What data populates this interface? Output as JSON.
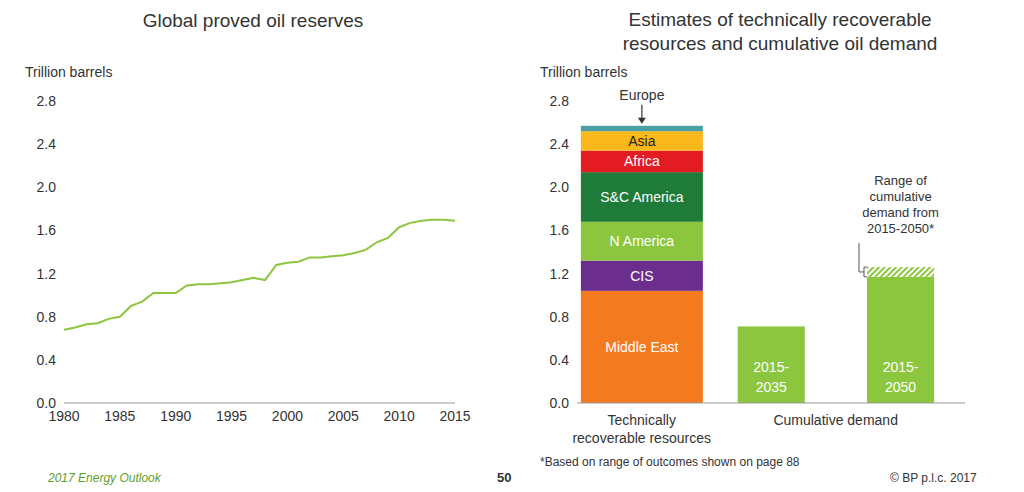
{
  "chart_data": [
    {
      "type": "line",
      "title": "Global proved oil reserves",
      "y_label": "Trillion barrels",
      "x": [
        1980,
        1981,
        1982,
        1983,
        1984,
        1985,
        1986,
        1987,
        1988,
        1989,
        1990,
        1991,
        1992,
        1993,
        1994,
        1995,
        1996,
        1997,
        1998,
        1999,
        2000,
        2001,
        2002,
        2003,
        2004,
        2005,
        2006,
        2007,
        2008,
        2009,
        2010,
        2011,
        2012,
        2013,
        2014,
        2015
      ],
      "values": [
        0.68,
        0.7,
        0.73,
        0.74,
        0.78,
        0.8,
        0.9,
        0.94,
        1.02,
        1.02,
        1.02,
        1.09,
        1.1,
        1.1,
        1.11,
        1.12,
        1.14,
        1.16,
        1.14,
        1.28,
        1.3,
        1.31,
        1.35,
        1.35,
        1.36,
        1.37,
        1.39,
        1.42,
        1.49,
        1.53,
        1.63,
        1.67,
        1.69,
        1.7,
        1.7,
        1.69
      ],
      "color": "#8cc63f",
      "xlim": [
        1980,
        2015
      ],
      "xticks": [
        1980,
        1985,
        1990,
        1995,
        2000,
        2005,
        2010,
        2015
      ],
      "ylim": [
        0,
        2.8
      ],
      "yticks": [
        {
          "value": 0,
          "label": "0.0"
        },
        0.4,
        0.8,
        1.2,
        1.6,
        {
          "value": 2,
          "label": "2.0"
        },
        2.4,
        2.8
      ],
      "grid": false
    },
    {
      "type": "bar",
      "stacked": true,
      "title": "Estimates of technically recoverable resources and cumulative oil demand",
      "y_label": "Trillion barrels",
      "categories": [
        "Technically recoverable resources",
        "2015-2035",
        "2015-2050"
      ],
      "series": [
        {
          "name": "Middle East",
          "color": "#f47a20",
          "values": [
            1.04,
            null,
            null
          ]
        },
        {
          "name": "CIS",
          "color": "#6b2d8e",
          "values": [
            0.28,
            null,
            null
          ]
        },
        {
          "name": "N America",
          "color": "#8cc63f",
          "values": [
            0.36,
            null,
            null
          ]
        },
        {
          "name": "S&C America",
          "color": "#1e7b38",
          "values": [
            0.46,
            null,
            null
          ]
        },
        {
          "name": "Africa",
          "color": "#e31b23",
          "values": [
            0.2,
            null,
            null
          ]
        },
        {
          "name": "Asia",
          "color": "#fbb81b",
          "values": [
            0.18,
            null,
            null
          ]
        },
        {
          "name": "Europe",
          "color": "#4a9fa5",
          "values": [
            0.05,
            null,
            null
          ]
        },
        {
          "name": "Cumulative demand",
          "color": "#8cc63f",
          "values": [
            null,
            0.71,
            1.17
          ]
        },
        {
          "name": "Range of cumulative demand from 2015-2050*",
          "color": "#8cc63f",
          "line_style": "hatched",
          "values": [
            null,
            null,
            0.09
          ]
        }
      ],
      "ylim": [
        0,
        2.8
      ],
      "yticks": [
        {
          "value": 0,
          "label": "0.0"
        },
        0.4,
        0.8,
        1.2,
        1.6,
        {
          "value": 2,
          "label": "2.0"
        },
        2.4,
        2.8
      ],
      "grid": false,
      "note": "*Based on range of outcomes shown on page 88"
    }
  ],
  "footer": {
    "source": "2017 Energy Outlook",
    "page": "50",
    "copyright": "© BP p.l.c. 2017"
  }
}
